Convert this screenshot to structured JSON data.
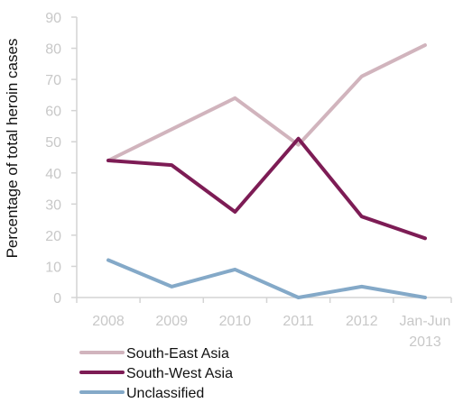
{
  "chart_data": {
    "type": "line",
    "title": "",
    "xlabel": "",
    "ylabel": "Percentage of total heroin cases",
    "ylim": [
      0,
      90
    ],
    "yticks": [
      0,
      10,
      20,
      30,
      40,
      50,
      60,
      70,
      80,
      90
    ],
    "categories": [
      [
        "2008"
      ],
      [
        "2009"
      ],
      [
        "2010"
      ],
      [
        "2011"
      ],
      [
        "2012"
      ],
      [
        "Jan-Jun",
        "2013"
      ]
    ],
    "grid": false,
    "legend_position": "bottom-left",
    "series": [
      {
        "name": "South-East Asia",
        "color": "#d1b4bd",
        "values": [
          44,
          54,
          64,
          49,
          71,
          81
        ]
      },
      {
        "name": "South-West Asia",
        "color": "#7d1c55",
        "values": [
          44,
          42.5,
          27.5,
          51,
          26,
          19
        ]
      },
      {
        "name": "Unclassified",
        "color": "#84a9c8",
        "values": [
          12,
          3.5,
          9,
          0,
          3.5,
          0
        ]
      }
    ]
  }
}
